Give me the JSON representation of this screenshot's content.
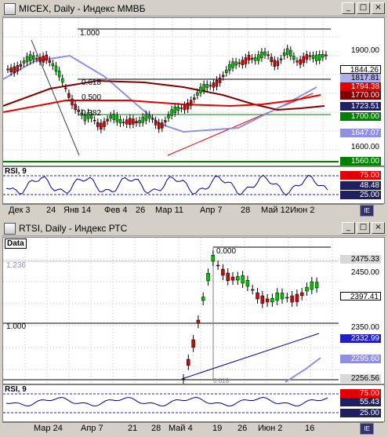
{
  "top": {
    "title": "MICEX, Daily - Индекс ММВБ",
    "fib_labels": [
      "1.000",
      "0.618",
      "0.500",
      "0.382"
    ],
    "price_labels": [
      "1900.00",
      "1844.26",
      "1817.81",
      "1794.38",
      "1770.00",
      "1723.51",
      "1700.00",
      "1647.07",
      "1600.00",
      "1560.00"
    ],
    "rsi_title": "RSI, 9",
    "rsi_labels": [
      "75.00",
      "48.48",
      "25.00"
    ],
    "xticks": [
      "Дек 3",
      "24",
      "Янв 14",
      "Фев 4",
      "26",
      "Мар 11",
      "Апр 7",
      "28",
      "Май 12",
      "Июн 2"
    ]
  },
  "bottom": {
    "title": "RTSI, Daily - Индекс РТС",
    "data_label": "Data",
    "fib_labels": [
      "1.236",
      "1.000",
      "0.000",
      "0.618"
    ],
    "price_labels": [
      "2475.33",
      "2450.00",
      "2397.41",
      "2350.00",
      "2332.99",
      "2295.60",
      "2256.56"
    ],
    "rsi_title": "RSI, 9",
    "rsi_labels": [
      "75.00",
      "55.43",
      "25.00"
    ],
    "xticks": [
      "Мар 24",
      "Апр 7",
      "21",
      "28",
      "Май 4",
      "19",
      "26",
      "Июн 2",
      "16"
    ]
  },
  "colors": {
    "bull": "#00c000",
    "bear": "#e00000",
    "ma_blue": "#9090e0",
    "ma_red": "#e00000",
    "ma_dark": "#800000",
    "green_line": "#008000"
  },
  "window_buttons": [
    "_",
    "□",
    "×"
  ]
}
